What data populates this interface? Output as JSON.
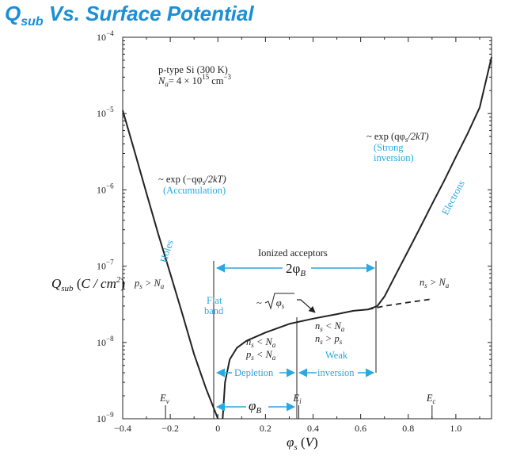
{
  "slide": {
    "title_main": "Q",
    "title_sub": "sub",
    "title_rest": " Vs. Surface Potential"
  },
  "colors": {
    "title": "#1a8fd6",
    "annotation": "#29a9e0",
    "curve": "#222222"
  },
  "chart_data": {
    "type": "line",
    "x_scale": "linear",
    "y_scale": "log",
    "xlim": [
      -0.4,
      1.15
    ],
    "ylim": [
      1e-09,
      0.0001
    ],
    "x_ticks": [
      "−0.4",
      "−0.2",
      "0",
      "0.2",
      "0.4",
      "0.6",
      "0.8",
      "1.0"
    ],
    "x_tick_values": [
      -0.4,
      -0.2,
      0,
      0.2,
      0.4,
      0.6,
      0.8,
      1.0
    ],
    "y_tick_exponents": [
      -4,
      -5,
      -6,
      -7,
      -8,
      -9
    ],
    "xlabel": "φs (V)",
    "ylabel": "Qsub (C / cm²)",
    "series": [
      {
        "points": [
          [
            -0.4,
            1.1e-05
          ],
          [
            -0.35,
            3.2e-06
          ],
          [
            -0.3,
            9e-07
          ],
          [
            -0.25,
            2.6e-07
          ],
          [
            -0.2,
            8e-08
          ],
          [
            -0.15,
            2.4e-08
          ],
          [
            -0.1,
            7e-09
          ],
          [
            -0.05,
            2.5e-09
          ],
          [
            -0.01,
            1.2e-09
          ],
          [
            0.0,
            1e-09
          ]
        ]
      },
      {
        "points": [
          [
            0.02,
            1e-09
          ],
          [
            0.03,
            3e-09
          ],
          [
            0.05,
            6e-09
          ],
          [
            0.08,
            8.5e-09
          ],
          [
            0.12,
            1.05e-08
          ],
          [
            0.2,
            1.35e-08
          ],
          [
            0.3,
            1.75e-08
          ],
          [
            0.4,
            2.05e-08
          ],
          [
            0.5,
            2.35e-08
          ],
          [
            0.57,
            2.6e-08
          ],
          [
            0.63,
            2.7e-08
          ],
          [
            0.67,
            3e-08
          ],
          [
            0.7,
            4e-08
          ],
          [
            0.75,
            8e-08
          ],
          [
            0.8,
            1.6e-07
          ],
          [
            0.85,
            3.2e-07
          ],
          [
            0.9,
            6.5e-07
          ],
          [
            0.95,
            1.3e-06
          ],
          [
            1.0,
            2.7e-06
          ],
          [
            1.05,
            5.5e-06
          ],
          [
            1.1,
            1.2e-05
          ],
          [
            1.15,
            5.5e-05
          ]
        ]
      },
      {
        "dashed": true,
        "points": [
          [
            0.63,
            2.7e-08
          ],
          [
            0.7,
            3e-08
          ],
          [
            0.8,
            3.35e-08
          ],
          [
            0.9,
            3.7e-08
          ]
        ]
      }
    ],
    "band_markers": [
      {
        "label": "E",
        "sub": "v",
        "x": -0.22
      },
      {
        "label": "E",
        "sub": "i",
        "x": 0.34
      },
      {
        "label": "E",
        "sub": "c",
        "x": 0.9
      }
    ],
    "annotations": {
      "material": "p-type Si (300 K)",
      "doping_lhs": "N",
      "doping_sub": "a",
      "doping_rhs": "=  4 × 10",
      "doping_exp": "15",
      "doping_unit": "cm",
      "doping_unit_exp": "−3",
      "strong_expr": "~ exp (qφ",
      "strong_expr_sub": "s",
      "strong_expr_tail": "/2kT)",
      "strong_1": "(Strong",
      "strong_2": "inversion)",
      "accum_expr": "~ exp (−qφ",
      "accum_expr_sub": "s",
      "accum_expr_tail": "/2kT)",
      "accum": "(Accumulation)",
      "electrons": "Electrons",
      "holes": "Holes",
      "ionized": "Ionized acceptors",
      "two_phi": "2φ",
      "two_phi_sub": "B",
      "phi": "φ",
      "phi_sub": "B",
      "flat_1": "Flat",
      "flat_2": "band",
      "sqrt_pre": "~",
      "sqrt_var": "φ",
      "sqrt_sub": "s",
      "depletion": "Depletion",
      "weak_1": "Weak",
      "weak_2": "inversion",
      "ps_gt": "p",
      "ps_gt_sub": "s",
      "ps_gt_rest": "> N",
      "ps_gt_rest_sub": "a",
      "ns_gt": "n",
      "ns_gt_sub": "s",
      "ns_gt_rest": "> N",
      "ns_gt_rest_sub": "a",
      "dep_l1": "n",
      "dep_l1_sub": "s",
      "dep_l1_rest": "< N",
      "dep_l1_rest_sub": "a",
      "dep_l2": "p",
      "dep_l2_sub": "s",
      "dep_l2_rest": "< N",
      "dep_l2_rest_sub": "a",
      "weak_l1": "n",
      "weak_l1_sub": "s",
      "weak_l1_rest": "< N",
      "weak_l1_rest_sub": "a",
      "weak_l2": "n",
      "weak_l2_sub": "s",
      "weak_l2_rest": "> p",
      "weak_l2_rest_sub": "s"
    }
  }
}
